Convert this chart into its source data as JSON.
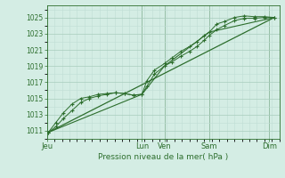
{
  "bg_color": "#d4ede4",
  "grid_color_major": "#a8ccbc",
  "grid_color_minor": "#c0ddd4",
  "line_color": "#2d6e2d",
  "xlabel": "Pression niveau de la mer( hPa )",
  "ylim": [
    1010.0,
    1026.5
  ],
  "yticks": [
    1011,
    1013,
    1015,
    1017,
    1019,
    1021,
    1023,
    1025
  ],
  "xlim": [
    0,
    9.3
  ],
  "day_labels": [
    "Jeu",
    "Lun",
    "Ven",
    "Sam",
    "Dim"
  ],
  "day_positions": [
    0.0,
    3.8,
    4.7,
    6.5,
    8.9
  ],
  "series1_x": [
    0.05,
    0.35,
    0.65,
    1.0,
    1.35,
    1.7,
    2.05,
    2.4,
    2.75,
    3.1,
    3.45,
    3.8,
    4.0,
    4.3,
    4.7,
    5.0,
    5.35,
    5.7,
    6.0,
    6.3,
    6.5,
    6.8,
    7.1,
    7.5,
    7.9,
    8.3,
    8.7,
    9.1
  ],
  "series1_y": [
    1010.8,
    1012.0,
    1013.2,
    1014.3,
    1015.0,
    1015.2,
    1015.5,
    1015.6,
    1015.7,
    1015.6,
    1015.4,
    1015.5,
    1017.2,
    1018.5,
    1019.3,
    1020.0,
    1020.8,
    1021.4,
    1022.0,
    1022.8,
    1023.2,
    1024.2,
    1024.5,
    1025.0,
    1025.2,
    1025.1,
    1025.1,
    1025.0
  ],
  "series2_x": [
    0.05,
    0.35,
    0.65,
    1.0,
    1.35,
    1.7,
    2.05,
    2.4,
    2.75,
    3.1,
    3.45,
    3.8,
    4.0,
    4.3,
    4.7,
    5.0,
    5.35,
    5.7,
    6.0,
    6.3,
    6.5,
    6.8,
    7.1,
    7.5,
    7.9,
    8.3,
    8.7,
    9.1
  ],
  "series2_y": [
    1010.8,
    1011.5,
    1012.5,
    1013.5,
    1014.5,
    1015.0,
    1015.3,
    1015.5,
    1015.7,
    1015.6,
    1015.4,
    1015.5,
    1016.5,
    1018.0,
    1019.0,
    1019.5,
    1020.2,
    1020.8,
    1021.4,
    1022.2,
    1022.8,
    1023.5,
    1024.0,
    1024.6,
    1024.9,
    1024.9,
    1025.0,
    1025.0
  ],
  "series3_x": [
    0.05,
    3.8,
    4.7,
    6.5,
    9.1
  ],
  "series3_y": [
    1010.8,
    1015.5,
    1019.0,
    1023.2,
    1025.0
  ],
  "trend_x": [
    0.05,
    9.1
  ],
  "trend_y": [
    1010.8,
    1025.0
  ]
}
